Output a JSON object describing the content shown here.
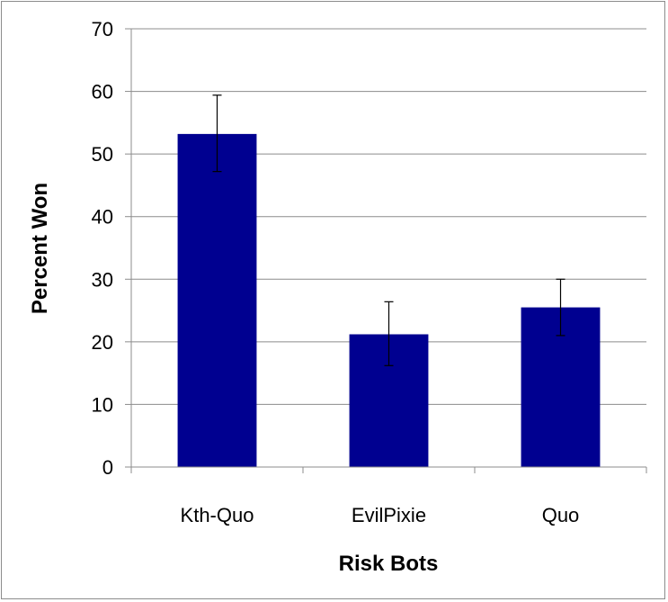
{
  "chart_data": {
    "type": "bar",
    "title": "",
    "xlabel": "Risk Bots",
    "ylabel": "Percent Won",
    "categories": [
      "Kth-Quo",
      "EvilPixie",
      "Quo"
    ],
    "values": [
      53.2,
      21.2,
      25.5
    ],
    "error_low": [
      47.2,
      16.2,
      21.0
    ],
    "error_high": [
      59.4,
      26.4,
      30.0
    ],
    "ylim": [
      0,
      70
    ],
    "yticks": [
      "0",
      "10",
      "20",
      "30",
      "40",
      "50",
      "60",
      "70"
    ],
    "grid": true,
    "legend": "none",
    "bar_color": "#000090",
    "grid_color": "#8c8c8c"
  }
}
